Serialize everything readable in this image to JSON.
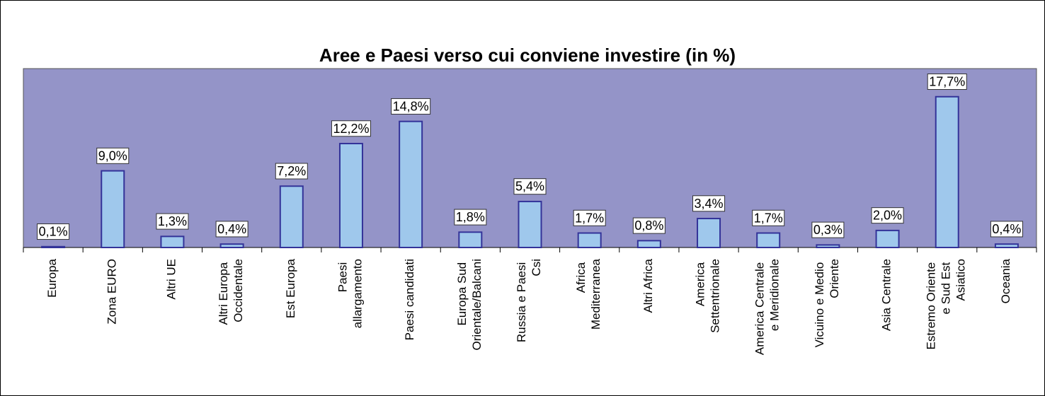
{
  "chart_data": {
    "type": "bar",
    "title": "Aree e Paesi verso cui conviene investire (in %)",
    "categories": [
      "Europa",
      "Zona EURO",
      "Altri UE",
      "Altri Europa Occidentale",
      "Est Europa",
      "Paesi allargamento",
      "Paesi candidati",
      "Europa Sud Orientale/Balcani",
      "Russia e Paesi Csi",
      "Africa Mediterranea",
      "Altri Africa",
      "America Settentrionale",
      "America Centrale e Meridionale",
      "Vicuino e Medio Oriente",
      "Asia Centrale",
      "Estremo Oriente e Sud Est Asiatico",
      "Oceania"
    ],
    "values": [
      0.1,
      9.0,
      1.3,
      0.4,
      7.2,
      12.2,
      14.8,
      1.8,
      5.4,
      1.7,
      0.8,
      3.4,
      1.7,
      0.3,
      2.0,
      17.7,
      0.4
    ],
    "value_labels": [
      "0,1%",
      "9,0%",
      "1,3%",
      "0,4%",
      "7,2%",
      "12,2%",
      "14,8%",
      "1,8%",
      "5,4%",
      "1,7%",
      "0,8%",
      "3,4%",
      "1,7%",
      "0,3%",
      "2,0%",
      "17,7%",
      "0,4%"
    ],
    "color": "#9fc8ec",
    "plot_color": "#9494c8",
    "ylim": [
      0,
      21
    ]
  }
}
